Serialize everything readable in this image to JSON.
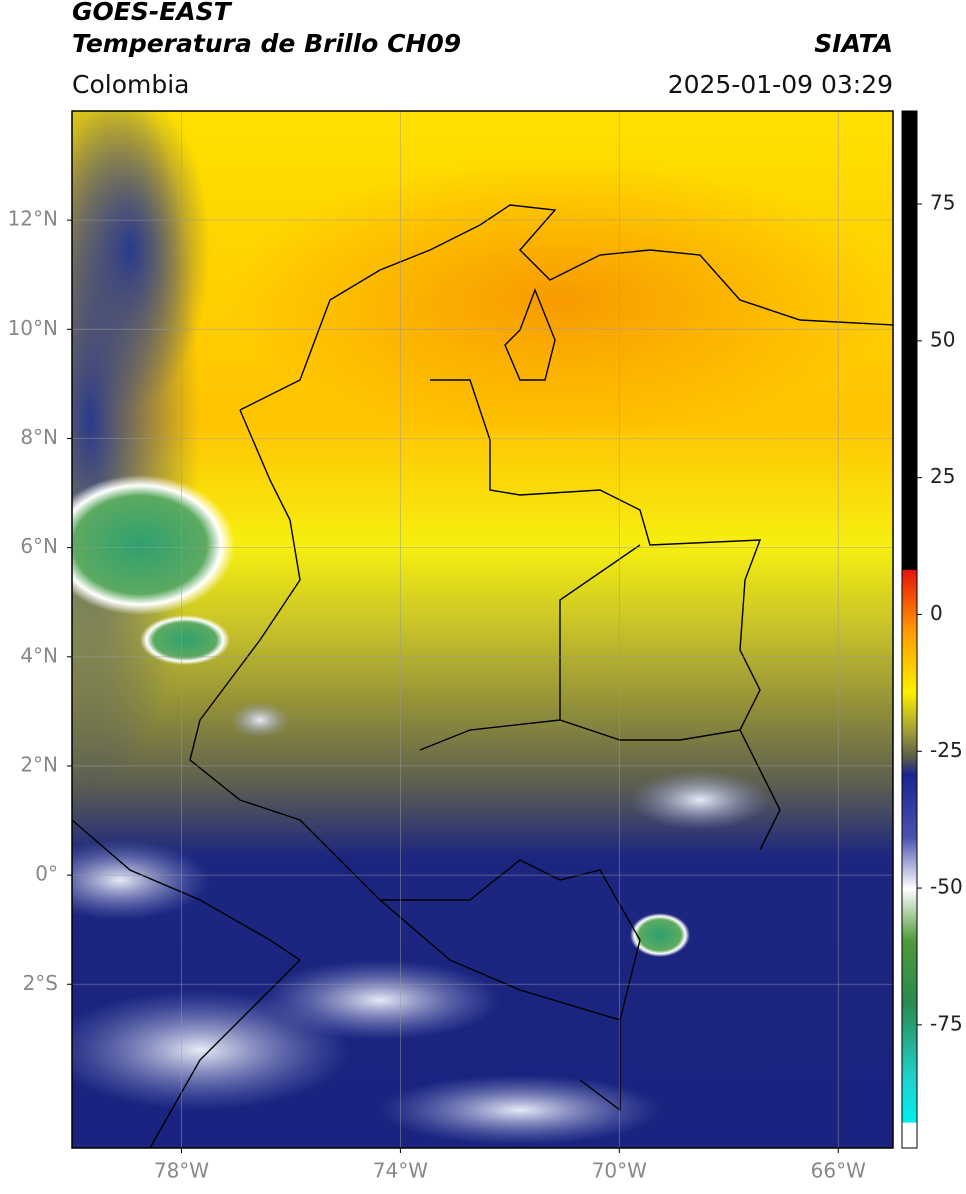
{
  "header": {
    "satellite": "GOES-EAST",
    "product": "Temperatura de Brillo CH09",
    "institution": "SIATA",
    "region": "Colombia",
    "datetime": "2025-01-09 03:29"
  },
  "map": {
    "lonlim": [
      -80,
      -65
    ],
    "latlim": [
      -5,
      14
    ],
    "lat_ticks": [
      {
        "value": 12,
        "label": "12°N"
      },
      {
        "value": 10,
        "label": "10°N"
      },
      {
        "value": 8,
        "label": "8°N"
      },
      {
        "value": 6,
        "label": "6°N"
      },
      {
        "value": 4,
        "label": "4°N"
      },
      {
        "value": 2,
        "label": "2°N"
      },
      {
        "value": 0,
        "label": "0°"
      },
      {
        "value": -2,
        "label": "2°S"
      }
    ],
    "lon_ticks": [
      {
        "value": -78,
        "label": "78°W"
      },
      {
        "value": -74,
        "label": "74°W"
      },
      {
        "value": -70,
        "label": "70°W"
      },
      {
        "value": -66,
        "label": "66°W"
      }
    ],
    "grid": true
  },
  "colorbar": {
    "lim": [
      -97.5,
      92
    ],
    "ticks": [
      75,
      50,
      25,
      0,
      -25,
      -50,
      -75
    ]
  }
}
